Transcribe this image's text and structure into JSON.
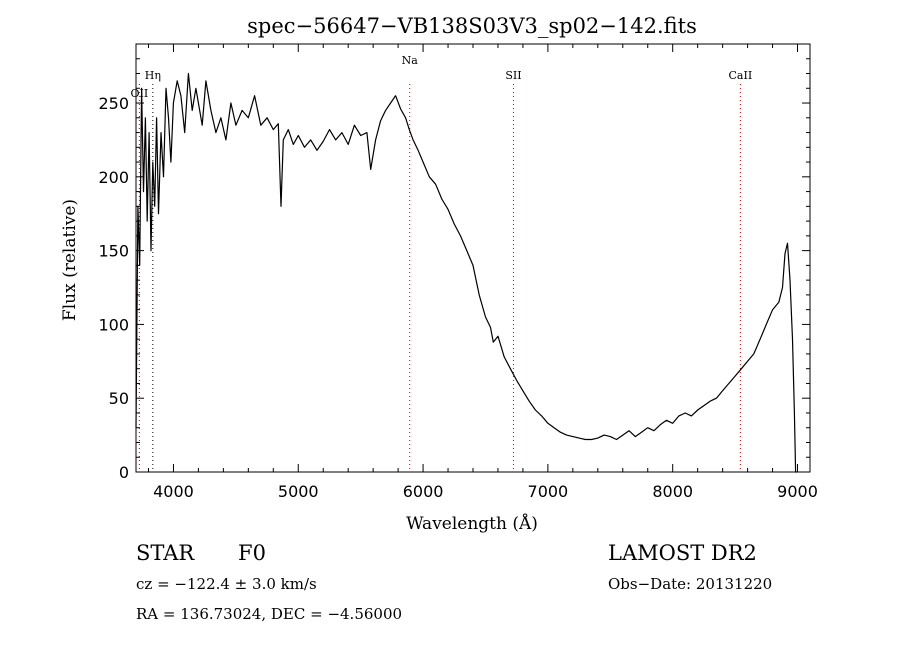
{
  "chart_data": {
    "type": "line",
    "title": "spec−56647−VB138S03V3_sp02−142.fits",
    "xlabel": "Wavelength (Å)",
    "ylabel": "Flux (relative)",
    "xlim": [
      3700,
      9100
    ],
    "ylim": [
      0,
      290
    ],
    "x_ticks": [
      4000,
      5000,
      6000,
      7000,
      8000,
      9000
    ],
    "y_ticks": [
      0,
      50,
      100,
      150,
      200,
      250
    ],
    "x_tick_labels": [
      "4000",
      "5000",
      "6000",
      "7000",
      "8000",
      "9000"
    ],
    "y_tick_labels": [
      "0",
      "50",
      "100",
      "150",
      "200",
      "250"
    ],
    "grid": false,
    "line_color": "#000000",
    "marker_color": "#cc0000",
    "markers": [
      {
        "label": "OII",
        "x": 3727,
        "color": "#cc0000"
      },
      {
        "label": "Hη",
        "x": 3835,
        "color": "#000000"
      },
      {
        "label": "Na",
        "x": 5893,
        "color": "#cc0000"
      },
      {
        "label": "SII",
        "x": 6724,
        "color": "#cc0000"
      },
      {
        "label": "CaII",
        "x": 8542,
        "color": "#cc0000"
      }
    ],
    "series": [
      {
        "x": [
          3700,
          3715,
          3730,
          3745,
          3760,
          3775,
          3790,
          3805,
          3820,
          3835,
          3850,
          3865,
          3880,
          3900,
          3920,
          3940,
          3960,
          3980,
          4000,
          4030,
          4060,
          4090,
          4120,
          4150,
          4180,
          4200,
          4230,
          4260,
          4300,
          4340,
          4380,
          4420,
          4460,
          4500,
          4550,
          4600,
          4650,
          4700,
          4750,
          4800,
          4840,
          4862,
          4880,
          4920,
          4960,
          5000,
          5050,
          5100,
          5150,
          5200,
          5250,
          5300,
          5350,
          5400,
          5450,
          5500,
          5550,
          5580,
          5620,
          5660,
          5700,
          5740,
          5780,
          5820,
          5860,
          5890,
          5920,
          5960,
          6000,
          6050,
          6100,
          6150,
          6200,
          6250,
          6300,
          6350,
          6400,
          6450,
          6500,
          6540,
          6563,
          6600,
          6650,
          6700,
          6750,
          6800,
          6850,
          6900,
          6950,
          7000,
          7050,
          7100,
          7150,
          7200,
          7250,
          7300,
          7350,
          7400,
          7450,
          7500,
          7550,
          7600,
          7650,
          7700,
          7750,
          7800,
          7850,
          7900,
          7950,
          8000,
          8050,
          8100,
          8150,
          8200,
          8250,
          8300,
          8350,
          8400,
          8450,
          8500,
          8550,
          8600,
          8650,
          8700,
          8750,
          8800,
          8850,
          8880,
          8900,
          8920,
          8940,
          8960,
          8975,
          8985,
          8995
        ],
        "y": [
          30,
          180,
          140,
          260,
          190,
          240,
          170,
          230,
          150,
          210,
          180,
          240,
          175,
          230,
          200,
          260,
          240,
          210,
          250,
          265,
          255,
          230,
          270,
          245,
          260,
          250,
          235,
          265,
          245,
          230,
          240,
          225,
          250,
          235,
          245,
          240,
          255,
          235,
          240,
          232,
          236,
          180,
          225,
          232,
          222,
          228,
          220,
          225,
          218,
          224,
          232,
          225,
          230,
          222,
          235,
          228,
          230,
          205,
          225,
          238,
          245,
          250,
          255,
          246,
          240,
          232,
          225,
          218,
          210,
          200,
          195,
          185,
          178,
          168,
          160,
          150,
          140,
          120,
          105,
          98,
          88,
          92,
          78,
          70,
          62,
          55,
          48,
          42,
          38,
          33,
          30,
          27,
          25,
          24,
          23,
          22,
          22,
          23,
          25,
          24,
          22,
          25,
          28,
          24,
          27,
          30,
          28,
          32,
          35,
          33,
          38,
          40,
          38,
          42,
          45,
          48,
          50,
          55,
          60,
          65,
          70,
          75,
          80,
          90,
          100,
          110,
          115,
          125,
          148,
          155,
          130,
          90,
          40,
          0,
          0
        ]
      }
    ]
  },
  "info": {
    "object_type": "STAR",
    "subclass": "F0",
    "survey": "LAMOST DR2",
    "redshift_line": "cz = −122.4 ± 3.0 km/s",
    "obs_date": "Obs−Date: 20131220",
    "coords": "RA = 136.73024, DEC =  −4.56000"
  }
}
